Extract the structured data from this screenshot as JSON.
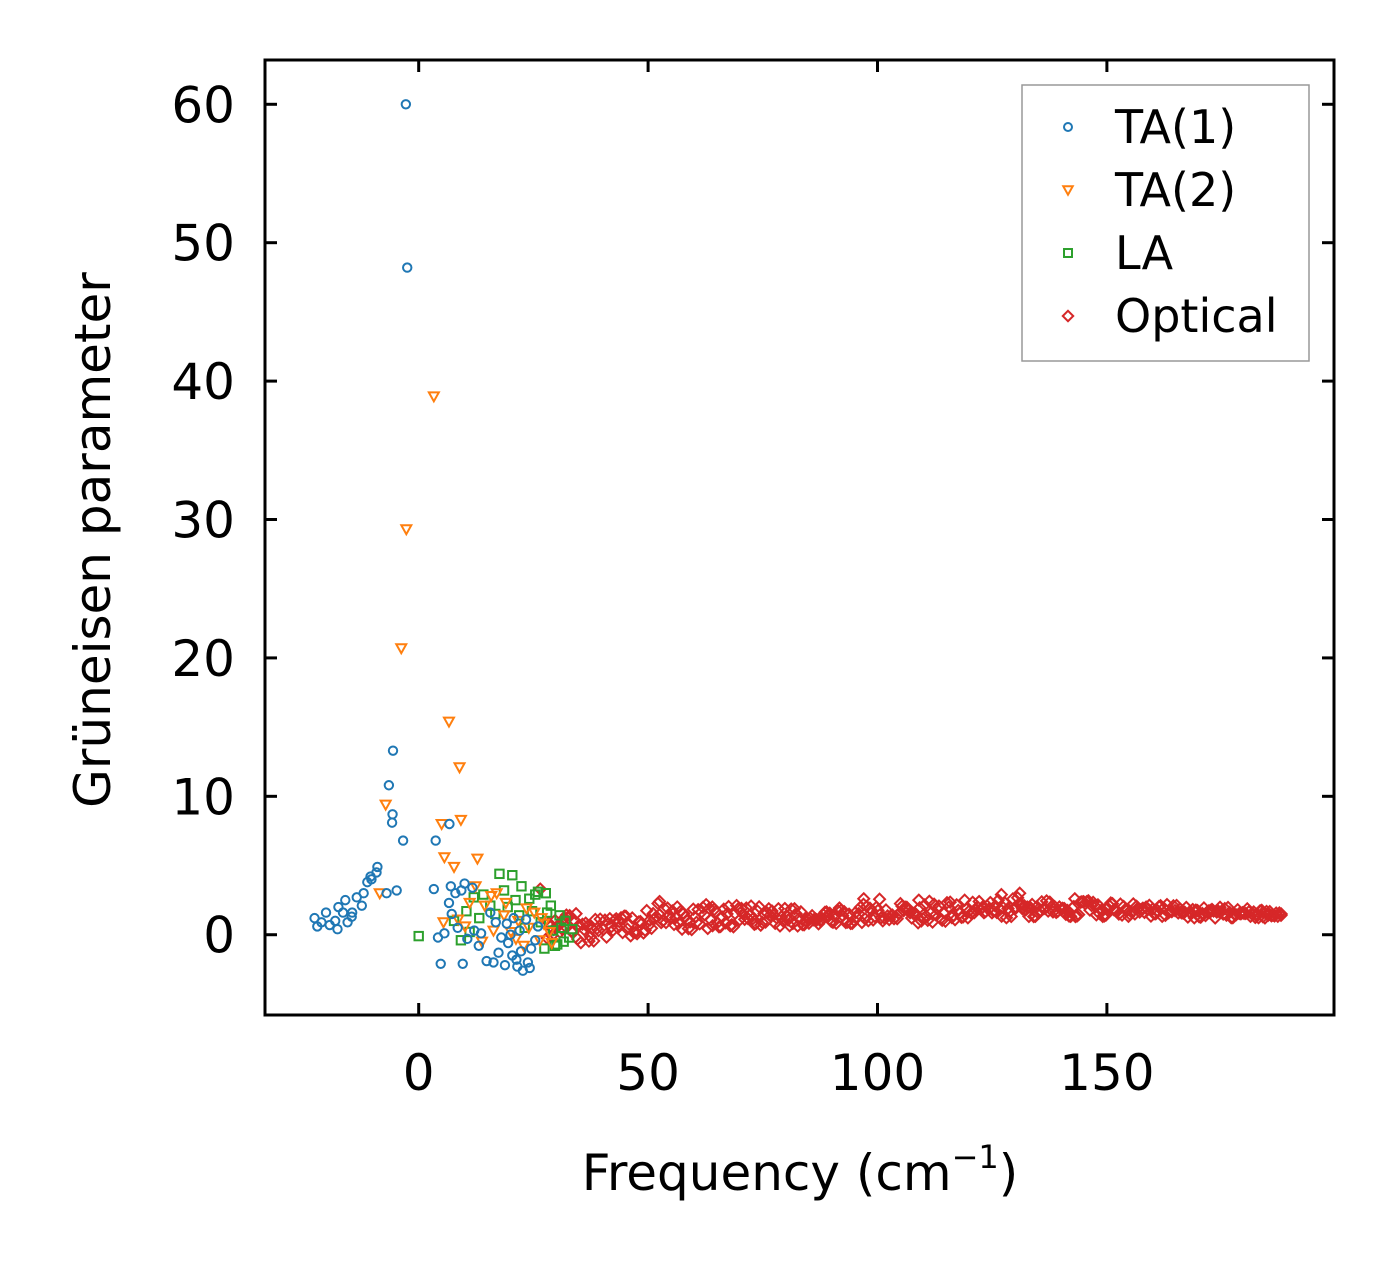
{
  "chart_data": {
    "type": "scatter",
    "xlabel": "Frequency (cm",
    "xlabel_sup": "−1",
    "xlabel_suffix": ")",
    "ylabel": "Grüneisen parameter",
    "xlim": [
      -33.5,
      199.5
    ],
    "ylim": [
      -5.8,
      63.2
    ],
    "xticks": [
      0,
      50,
      100,
      150
    ],
    "xtick_labels": [
      "0",
      "50",
      "100",
      "150"
    ],
    "yticks": [
      0,
      10,
      20,
      30,
      40,
      50,
      60
    ],
    "ytick_labels": [
      "0",
      "10",
      "20",
      "30",
      "40",
      "50",
      "60"
    ],
    "legend_position": "top-right",
    "series": [
      {
        "name": "TA(1)",
        "marker": "circle",
        "color": "#1f77b4",
        "points": [
          [
            -2.8,
            60.0
          ],
          [
            -2.5,
            48.2
          ],
          [
            -5.6,
            13.3
          ],
          [
            -6.5,
            10.8
          ],
          [
            -5.7,
            8.7
          ],
          [
            -5.8,
            8.1
          ],
          [
            -3.4,
            6.8
          ],
          [
            3.7,
            6.8
          ],
          [
            6.7,
            8.0
          ],
          [
            -9.0,
            4.9
          ],
          [
            -9.2,
            4.5
          ],
          [
            -10.5,
            4.2
          ],
          [
            -10.3,
            4.0
          ],
          [
            -11.2,
            3.8
          ],
          [
            -12.0,
            3.0
          ],
          [
            -7.0,
            3.0
          ],
          [
            -4.8,
            3.2
          ],
          [
            -13.5,
            2.7
          ],
          [
            -16.0,
            2.5
          ],
          [
            -12.4,
            2.1
          ],
          [
            -17.5,
            2.0
          ],
          [
            -16.5,
            1.6
          ],
          [
            -14.6,
            1.3
          ],
          [
            -18.2,
            1.0
          ],
          [
            -19.4,
            0.7
          ],
          [
            -22.7,
            1.2
          ],
          [
            -20.2,
            1.6
          ],
          [
            -21.2,
            0.9
          ],
          [
            -22.1,
            0.6
          ],
          [
            -17.7,
            0.4
          ],
          [
            -15.5,
            0.9
          ],
          [
            -14.5,
            1.6
          ],
          [
            3.3,
            3.3
          ],
          [
            7.0,
            3.5
          ],
          [
            8.0,
            3.0
          ],
          [
            10.0,
            3.7
          ],
          [
            9.3,
            3.2
          ],
          [
            11.7,
            3.4
          ],
          [
            6.6,
            2.3
          ],
          [
            4.2,
            -0.2
          ],
          [
            5.6,
            0.1
          ],
          [
            7.2,
            1.5
          ],
          [
            8.5,
            0.5
          ],
          [
            10.6,
            -0.3
          ],
          [
            12.1,
            0.3
          ],
          [
            4.8,
            -2.1
          ],
          [
            9.6,
            -2.1
          ],
          [
            14.8,
            -1.9
          ],
          [
            13.1,
            -0.8
          ],
          [
            16.3,
            -2.0
          ],
          [
            17.4,
            -1.3
          ],
          [
            18.0,
            -0.2
          ],
          [
            19.2,
            0.8
          ],
          [
            20.4,
            -1.5
          ],
          [
            21.5,
            -2.3
          ],
          [
            22.7,
            -2.6
          ],
          [
            23.8,
            -2.0
          ],
          [
            24.5,
            -1.0
          ],
          [
            22.0,
            0.3
          ],
          [
            20.7,
            1.2
          ],
          [
            19.5,
            -0.6
          ],
          [
            25.4,
            -0.4
          ],
          [
            26.0,
            0.6
          ],
          [
            23.4,
            1.1
          ],
          [
            21.3,
            -1.8
          ],
          [
            18.8,
            -2.2
          ],
          [
            24.2,
            -2.4
          ],
          [
            22.3,
            -1.2
          ],
          [
            20.0,
            0.0
          ],
          [
            16.8,
            0.9
          ],
          [
            15.6,
            1.6
          ],
          [
            13.6,
            0.1
          ]
        ]
      },
      {
        "name": "TA(2)",
        "marker": "triangle-down",
        "color": "#ff7f0e",
        "points": [
          [
            3.3,
            38.9
          ],
          [
            -2.7,
            29.3
          ],
          [
            -3.8,
            20.7
          ],
          [
            6.6,
            15.4
          ],
          [
            8.9,
            12.1
          ],
          [
            -7.2,
            9.4
          ],
          [
            9.2,
            8.3
          ],
          [
            5.0,
            8.0
          ],
          [
            5.6,
            5.6
          ],
          [
            7.7,
            4.9
          ],
          [
            12.8,
            5.5
          ],
          [
            -8.5,
            3.0
          ],
          [
            5.4,
            0.9
          ],
          [
            8.6,
            1.1
          ],
          [
            11.1,
            2.3
          ],
          [
            12.4,
            3.5
          ],
          [
            14.4,
            2.1
          ],
          [
            15.8,
            2.8
          ],
          [
            17.0,
            3.0
          ],
          [
            16.3,
            0.3
          ],
          [
            18.6,
            1.4
          ],
          [
            20.1,
            0.2
          ],
          [
            21.7,
            1.0
          ],
          [
            22.9,
            -0.8
          ],
          [
            24.0,
            0.5
          ],
          [
            25.2,
            1.6
          ],
          [
            26.4,
            -0.4
          ],
          [
            27.3,
            0.8
          ],
          [
            28.5,
            0.2
          ],
          [
            29.0,
            -0.6
          ],
          [
            26.8,
            1.2
          ],
          [
            23.5,
            1.9
          ],
          [
            21.2,
            -0.3
          ],
          [
            19.0,
            2.3
          ],
          [
            10.1,
            0.6
          ],
          [
            13.8,
            -0.5
          ]
        ]
      },
      {
        "name": "LA",
        "marker": "square",
        "color": "#2ca02c",
        "points": [
          [
            0.0,
            -0.1
          ],
          [
            9.2,
            -0.4
          ],
          [
            17.6,
            4.4
          ],
          [
            20.4,
            4.3
          ],
          [
            18.6,
            3.2
          ],
          [
            22.4,
            3.5
          ],
          [
            25.4,
            2.9
          ],
          [
            27.7,
            3.0
          ],
          [
            26.0,
            3.1
          ],
          [
            14.1,
            2.9
          ],
          [
            15.6,
            2.1
          ],
          [
            12.0,
            2.7
          ],
          [
            10.4,
            1.7
          ],
          [
            16.7,
            1.5
          ],
          [
            19.4,
            2.0
          ],
          [
            21.9,
            1.4
          ],
          [
            23.1,
            0.5
          ],
          [
            24.7,
            1.7
          ],
          [
            26.6,
            0.9
          ],
          [
            28.0,
            1.6
          ],
          [
            29.3,
            0.3
          ],
          [
            30.2,
            -0.7
          ],
          [
            31.1,
            0.5
          ],
          [
            32.0,
            1.0
          ],
          [
            32.8,
            -0.2
          ],
          [
            33.5,
            0.4
          ],
          [
            27.4,
            -1.0
          ],
          [
            29.7,
            -0.8
          ],
          [
            31.6,
            -0.5
          ],
          [
            30.7,
            1.4
          ],
          [
            28.8,
            2.1
          ],
          [
            24.1,
            2.6
          ],
          [
            21.1,
            2.5
          ],
          [
            13.2,
            1.2
          ],
          [
            11.1,
            0.2
          ],
          [
            7.7,
            1.0
          ]
        ]
      },
      {
        "name": "Optical",
        "marker": "diamond",
        "color": "#d62728",
        "band_x": [
          28,
          33,
          40,
          45,
          50,
          52,
          55,
          60,
          65,
          70,
          75,
          80,
          85,
          90,
          95,
          100,
          105,
          110,
          115,
          120,
          125,
          128,
          131,
          135,
          140,
          145,
          150,
          155,
          160,
          165,
          170,
          175,
          180,
          185,
          188
        ],
        "band_center": [
          0.3,
          0.5,
          0.6,
          0.8,
          1.0,
          1.5,
          1.3,
          1.2,
          1.4,
          1.3,
          1.5,
          1.3,
          1.2,
          1.2,
          1.6,
          1.8,
          1.7,
          1.6,
          1.7,
          1.8,
          1.8,
          2.0,
          2.0,
          1.9,
          1.9,
          1.9,
          1.8,
          1.8,
          1.7,
          1.7,
          1.6,
          1.6,
          1.5,
          1.5,
          1.5
        ],
        "band_halfwidth": [
          0.8,
          1.2,
          1.1,
          1.0,
          1.1,
          1.0,
          0.9,
          0.9,
          0.9,
          0.8,
          0.8,
          0.7,
          0.6,
          0.6,
          0.8,
          0.8,
          0.7,
          0.8,
          0.8,
          0.7,
          0.6,
          0.8,
          0.7,
          0.6,
          0.6,
          0.6,
          0.5,
          0.5,
          0.5,
          0.5,
          0.4,
          0.4,
          0.4,
          0.3,
          0.2
        ],
        "points": [
          [
            127.0,
            2.9
          ],
          [
            131.0,
            3.0
          ],
          [
            26.5,
            3.3
          ],
          [
            52.5,
            2.4
          ],
          [
            97.0,
            2.6
          ],
          [
            143.0,
            2.6
          ],
          [
            188.0,
            1.5
          ],
          [
            184.0,
            1.3
          ],
          [
            109.0,
            2.5
          ],
          [
            64.0,
            2.0
          ]
        ]
      }
    ]
  }
}
